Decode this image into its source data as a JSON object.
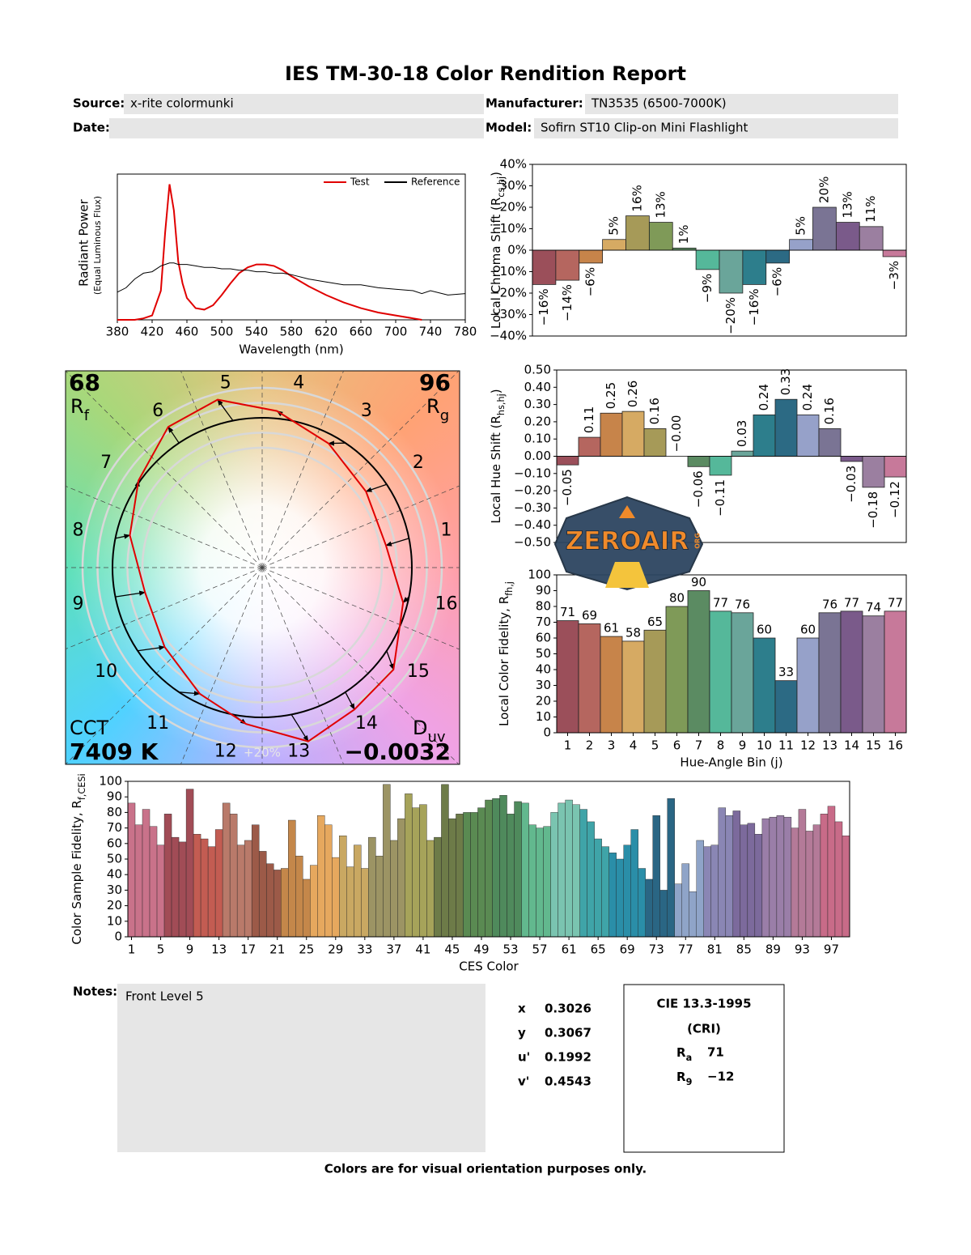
{
  "title": "IES TM-30-18 Color Rendition Report",
  "fields": [
    {
      "label": "Source:",
      "value": "x-rite colormunki"
    },
    {
      "label": "Manufacturer:",
      "value": "TN3535 (6500-7000K)"
    },
    {
      "label": "Date:"
    },
    {
      "label": "Model:",
      "value": "Sofirn ST10 Clip-on Mini Flashlight"
    }
  ],
  "chart_data": [
    {
      "type": "line",
      "y_label": "Radiant Power",
      "y_label_note": "(Equal Luminous Flux)",
      "x_label": "Wavelength (nm)",
      "x": [
        380,
        390,
        400,
        410,
        420,
        430,
        435,
        440,
        445,
        450,
        455,
        460,
        470,
        480,
        490,
        500,
        510,
        520,
        530,
        540,
        550,
        560,
        570,
        580,
        600,
        620,
        640,
        660,
        680,
        700,
        720,
        730,
        740,
        760,
        780
      ],
      "series": [
        {
          "name": "Test",
          "color": "#e00000",
          "values": [
            0,
            0,
            0,
            0.01,
            0.03,
            0.2,
            0.6,
            0.93,
            0.75,
            0.4,
            0.25,
            0.15,
            0.08,
            0.07,
            0.1,
            0.17,
            0.25,
            0.32,
            0.36,
            0.38,
            0.38,
            0.37,
            0.34,
            0.3,
            0.23,
            0.17,
            0.12,
            0.08,
            0.05,
            0.03,
            0.01,
            0,
            null,
            null,
            null
          ]
        },
        {
          "name": "Reference",
          "color": "#000000",
          "values": [
            0.19,
            0.22,
            0.28,
            0.32,
            0.33,
            0.37,
            0.38,
            0.39,
            0.39,
            0.38,
            0.38,
            0.38,
            0.37,
            0.36,
            0.36,
            0.35,
            0.35,
            0.34,
            0.34,
            0.33,
            0.33,
            0.32,
            0.32,
            0.31,
            0.28,
            0.26,
            0.24,
            0.24,
            0.22,
            0.21,
            0.2,
            0.18,
            0.2,
            0.17,
            0.18
          ]
        }
      ],
      "xlim": [
        380,
        780
      ],
      "xticks": [
        380,
        420,
        460,
        500,
        540,
        580,
        620,
        660,
        700,
        740,
        780
      ],
      "ylim": [
        0,
        1
      ],
      "legend": "upper-right"
    },
    {
      "type": "bar",
      "y_label": [
        "Local Chroma Shift (R",
        "cs,hj",
        ")"
      ],
      "values": [
        -16,
        -14,
        -6,
        5,
        16,
        13,
        1,
        -9,
        -20,
        -16,
        -6,
        5,
        20,
        13,
        11,
        -3
      ],
      "value_labels": [
        "−16%",
        "−14%",
        "−6%",
        "5%",
        "16%",
        "13%",
        "1%",
        "−9%",
        "−20%",
        "−16%",
        "−6%",
        "5%",
        "20%",
        "13%",
        "11%",
        "−3%"
      ],
      "colors": [
        "#9b4f5a",
        "#b5665f",
        "#c7844a",
        "#d6aa63",
        "#a69a58",
        "#7f9a58",
        "#5b8b62",
        "#55b89a",
        "#6aa59a",
        "#2d7e8c",
        "#2c6a84",
        "#96a1c9",
        "#7a7494",
        "#7a5a8a",
        "#9b7fa0",
        "#c7799a"
      ],
      "ylim": [
        -40,
        40
      ],
      "yticks": [
        {
          "value": 40,
          "label": "40%"
        },
        {
          "value": 30,
          "label": "30%"
        },
        {
          "value": 20,
          "label": "20%"
        },
        {
          "value": 10,
          "label": "10%"
        },
        {
          "value": 0,
          "label": "0%"
        },
        {
          "value": -10,
          "label": "−10%"
        },
        {
          "value": -20,
          "label": "−20%"
        },
        {
          "value": -30,
          "label": "−30%"
        },
        {
          "value": -40,
          "label": "−40%"
        }
      ]
    },
    {
      "type": "bar",
      "y_label": [
        "Local Hue Shift (R",
        "hs,hj",
        ")"
      ],
      "values": [
        -0.05,
        0.11,
        0.25,
        0.26,
        0.16,
        0,
        -0.06,
        -0.11,
        0.03,
        0.24,
        0.33,
        0.24,
        0.16,
        -0.03,
        -0.18,
        -0.12
      ],
      "value_labels": [
        "−0.05",
        "0.11",
        "0.25",
        "0.26",
        "0.16",
        "−0.00",
        "−0.06",
        "−0.11",
        "0.03",
        "0.24",
        "0.33",
        "0.24",
        "0.16",
        "−0.03",
        "−0.18",
        "−0.12"
      ],
      "colors": [
        "#9b4f5a",
        "#b5665f",
        "#c7844a",
        "#d6aa63",
        "#a69a58",
        "#7f9a58",
        "#5b8b62",
        "#55b89a",
        "#6aa59a",
        "#2d7e8c",
        "#2c6a84",
        "#96a1c9",
        "#7a7494",
        "#7a5a8a",
        "#9b7fa0",
        "#c7799a"
      ],
      "ylim": [
        -0.5,
        0.5
      ],
      "yticks": [
        {
          "value": 0.5,
          "label": "0.50"
        },
        {
          "value": 0.4,
          "label": "0.40"
        },
        {
          "value": 0.3,
          "label": "0.30"
        },
        {
          "value": 0.2,
          "label": "0.20"
        },
        {
          "value": 0.1,
          "label": "0.10"
        },
        {
          "value": 0,
          "label": "0.00"
        },
        {
          "value": -0.1,
          "label": "−0.10"
        },
        {
          "value": -0.2,
          "label": "−0.20"
        },
        {
          "value": -0.3,
          "label": "−0.30"
        },
        {
          "value": -0.4,
          "label": "−0.40"
        },
        {
          "value": -0.5,
          "label": "−0.50"
        }
      ]
    },
    {
      "type": "bar",
      "y_label": [
        "Local Color Fidelity, R",
        "fh,j"
      ],
      "x_label": "Hue-Angle Bin (j)",
      "categories": [
        "1",
        "2",
        "3",
        "4",
        "5",
        "6",
        "7",
        "8",
        "9",
        "10",
        "11",
        "12",
        "13",
        "14",
        "15",
        "16"
      ],
      "values": [
        71,
        69,
        61,
        58,
        65,
        80,
        90,
        77,
        76,
        60,
        33,
        60,
        76,
        77,
        74,
        77
      ],
      "colors": [
        "#9b4f5a",
        "#b5665f",
        "#c7844a",
        "#d6aa63",
        "#a69a58",
        "#7f9a58",
        "#5b8b62",
        "#55b89a",
        "#6aa59a",
        "#2d7e8c",
        "#2c6a84",
        "#96a1c9",
        "#7a7494",
        "#7a5a8a",
        "#9b7fa0",
        "#c7799a"
      ],
      "ylim": [
        0,
        100
      ],
      "yticks": [
        0,
        10,
        20,
        30,
        40,
        50,
        60,
        70,
        80,
        90,
        100
      ]
    },
    {
      "type": "bar",
      "y_label": [
        "Color Sample Fidelity, R",
        "f,CESi"
      ],
      "x_label": "CES Color",
      "categories": [
        1,
        null,
        null,
        null,
        5,
        null,
        null,
        null,
        9,
        null,
        null,
        null,
        13,
        null,
        null,
        null,
        17,
        null,
        null,
        null,
        21,
        null,
        null,
        null,
        25,
        null,
        null,
        null,
        29,
        null,
        null,
        null,
        33,
        null,
        null,
        null,
        37,
        null,
        null,
        null,
        41,
        null,
        null,
        null,
        45,
        null,
        null,
        null,
        49,
        null,
        null,
        null,
        53,
        null,
        null,
        null,
        57,
        null,
        null,
        null,
        61,
        null,
        null,
        null,
        65,
        null,
        null,
        null,
        69,
        null,
        null,
        null,
        73,
        null,
        null,
        null,
        77,
        null,
        null,
        null,
        81,
        null,
        null,
        null,
        85,
        null,
        null,
        null,
        89,
        null,
        null,
        null,
        93,
        null,
        null,
        null,
        97,
        null,
        null
      ],
      "values": [
        86,
        72,
        82,
        71,
        59,
        79,
        64,
        61,
        95,
        66,
        63,
        58,
        69,
        86,
        79,
        59,
        62,
        72,
        55,
        47,
        43,
        44,
        75,
        52,
        37,
        46,
        78,
        72,
        51,
        65,
        45,
        59,
        44,
        64,
        52,
        98,
        62,
        76,
        92,
        83,
        85,
        62,
        64,
        98,
        76,
        79,
        80,
        80,
        83,
        88,
        89,
        91,
        79,
        87,
        86,
        72,
        70,
        71,
        80,
        86,
        88,
        85,
        82,
        74,
        63,
        58,
        54,
        50,
        59,
        69,
        44,
        37,
        78,
        30,
        89,
        34,
        47,
        29,
        62,
        58,
        59,
        83,
        78,
        81,
        72,
        73,
        66,
        76,
        77,
        78,
        77,
        70,
        82,
        68,
        72,
        79,
        84,
        74,
        65
      ],
      "colors": [
        "#c9728a",
        "#a14c56",
        "#c35c52",
        "#b97a6a",
        "#9c5a48",
        "#c4874a",
        "#e6a85e",
        "#c9a862",
        "#9c9464",
        "#a6a35a",
        "#6d7b48",
        "#5a8a52",
        "#4f8a5c",
        "#62b88e",
        "#7ac4b0",
        "#3fa4a8",
        "#2a8ea8",
        "#2a6684",
        "#8fa4c8",
        "#8a86b4",
        "#7c6a9c",
        "#9a7ea8",
        "#b47a98",
        "#c86b88"
      ],
      "ylim": [
        0,
        100
      ],
      "yticks": [
        0,
        10,
        20,
        30,
        40,
        50,
        60,
        70,
        80,
        90,
        100
      ]
    },
    {
      "type": "vector",
      "rf": 68,
      "rf_label": [
        "R",
        "f"
      ],
      "rg": 96,
      "rg_label": [
        "R",
        "g"
      ],
      "cct_label": "CCT",
      "cct": "7409 K",
      "duv_label": [
        "D",
        "uv"
      ],
      "duv": "−0.0032",
      "bin_labels": [
        1,
        2,
        3,
        4,
        5,
        6,
        7,
        8,
        9,
        10,
        11,
        12,
        13,
        14,
        15,
        16
      ],
      "ring_label": "+20%",
      "test_color": "#e00000",
      "reference_color": "#000000"
    }
  ],
  "notes": {
    "label": "Notes:",
    "text": "Front Level 5"
  },
  "coordinates": [
    {
      "label": "x",
      "value": 0.3026
    },
    {
      "label": "y",
      "value": 0.3067
    },
    {
      "label": "u'",
      "value": 0.1992
    },
    {
      "label": "v'",
      "value": 0.4543
    }
  ],
  "cri": {
    "title": "CIE 13.3-1995",
    "subtitle": "(CRI)",
    "rows": [
      {
        "label": [
          "R",
          "a"
        ],
        "value": 71
      },
      {
        "label": [
          "R",
          "9"
        ],
        "value": -12,
        "value_label": "−12"
      }
    ]
  },
  "footer": "Colors are for visual orientation purposes only.",
  "watermark": [
    "ZEROAIR",
    "ORG"
  ]
}
